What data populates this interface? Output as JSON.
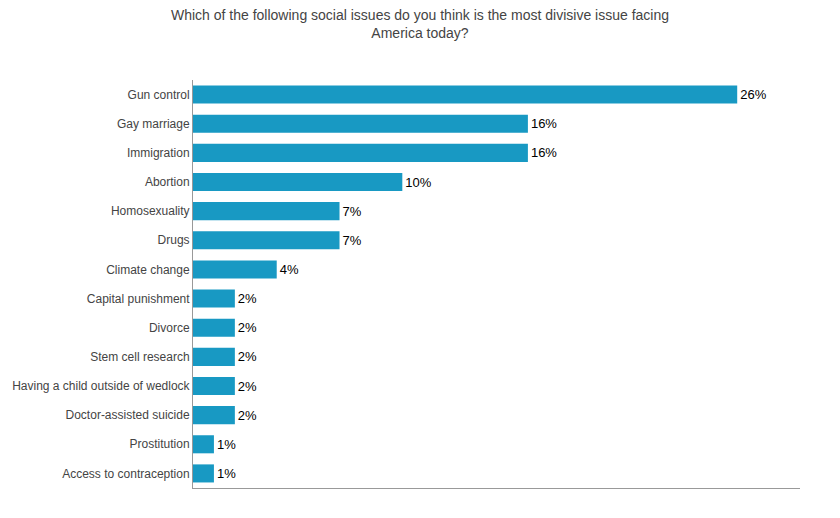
{
  "chart_data": {
    "type": "bar",
    "orientation": "horizontal",
    "title": "Which of the following social issues do you think is the most divisive issue facing\nAmerica today?",
    "categories": [
      "Access to contraception",
      "Prostitution",
      "Doctor-assisted suicide",
      "Having a child outside of wedlock",
      "Stem cell research",
      "Divorce",
      "Capital punishment",
      "Climate change",
      "Drugs",
      "Homosexuality",
      "Abortion",
      "Immigration",
      "Gay marriage",
      "Gun control"
    ],
    "values": [
      1,
      1,
      2,
      2,
      2,
      2,
      2,
      4,
      7,
      7,
      10,
      16,
      16,
      26
    ],
    "value_labels": [
      "1%",
      "1%",
      "2%",
      "2%",
      "2%",
      "2%",
      "2%",
      "4%",
      "7%",
      "7%",
      "10%",
      "16%",
      "16%",
      "26%"
    ],
    "color": "#1899c3",
    "xlim": [
      0,
      29
    ],
    "data_labels": true,
    "tick_labels": "y",
    "grid": false
  }
}
